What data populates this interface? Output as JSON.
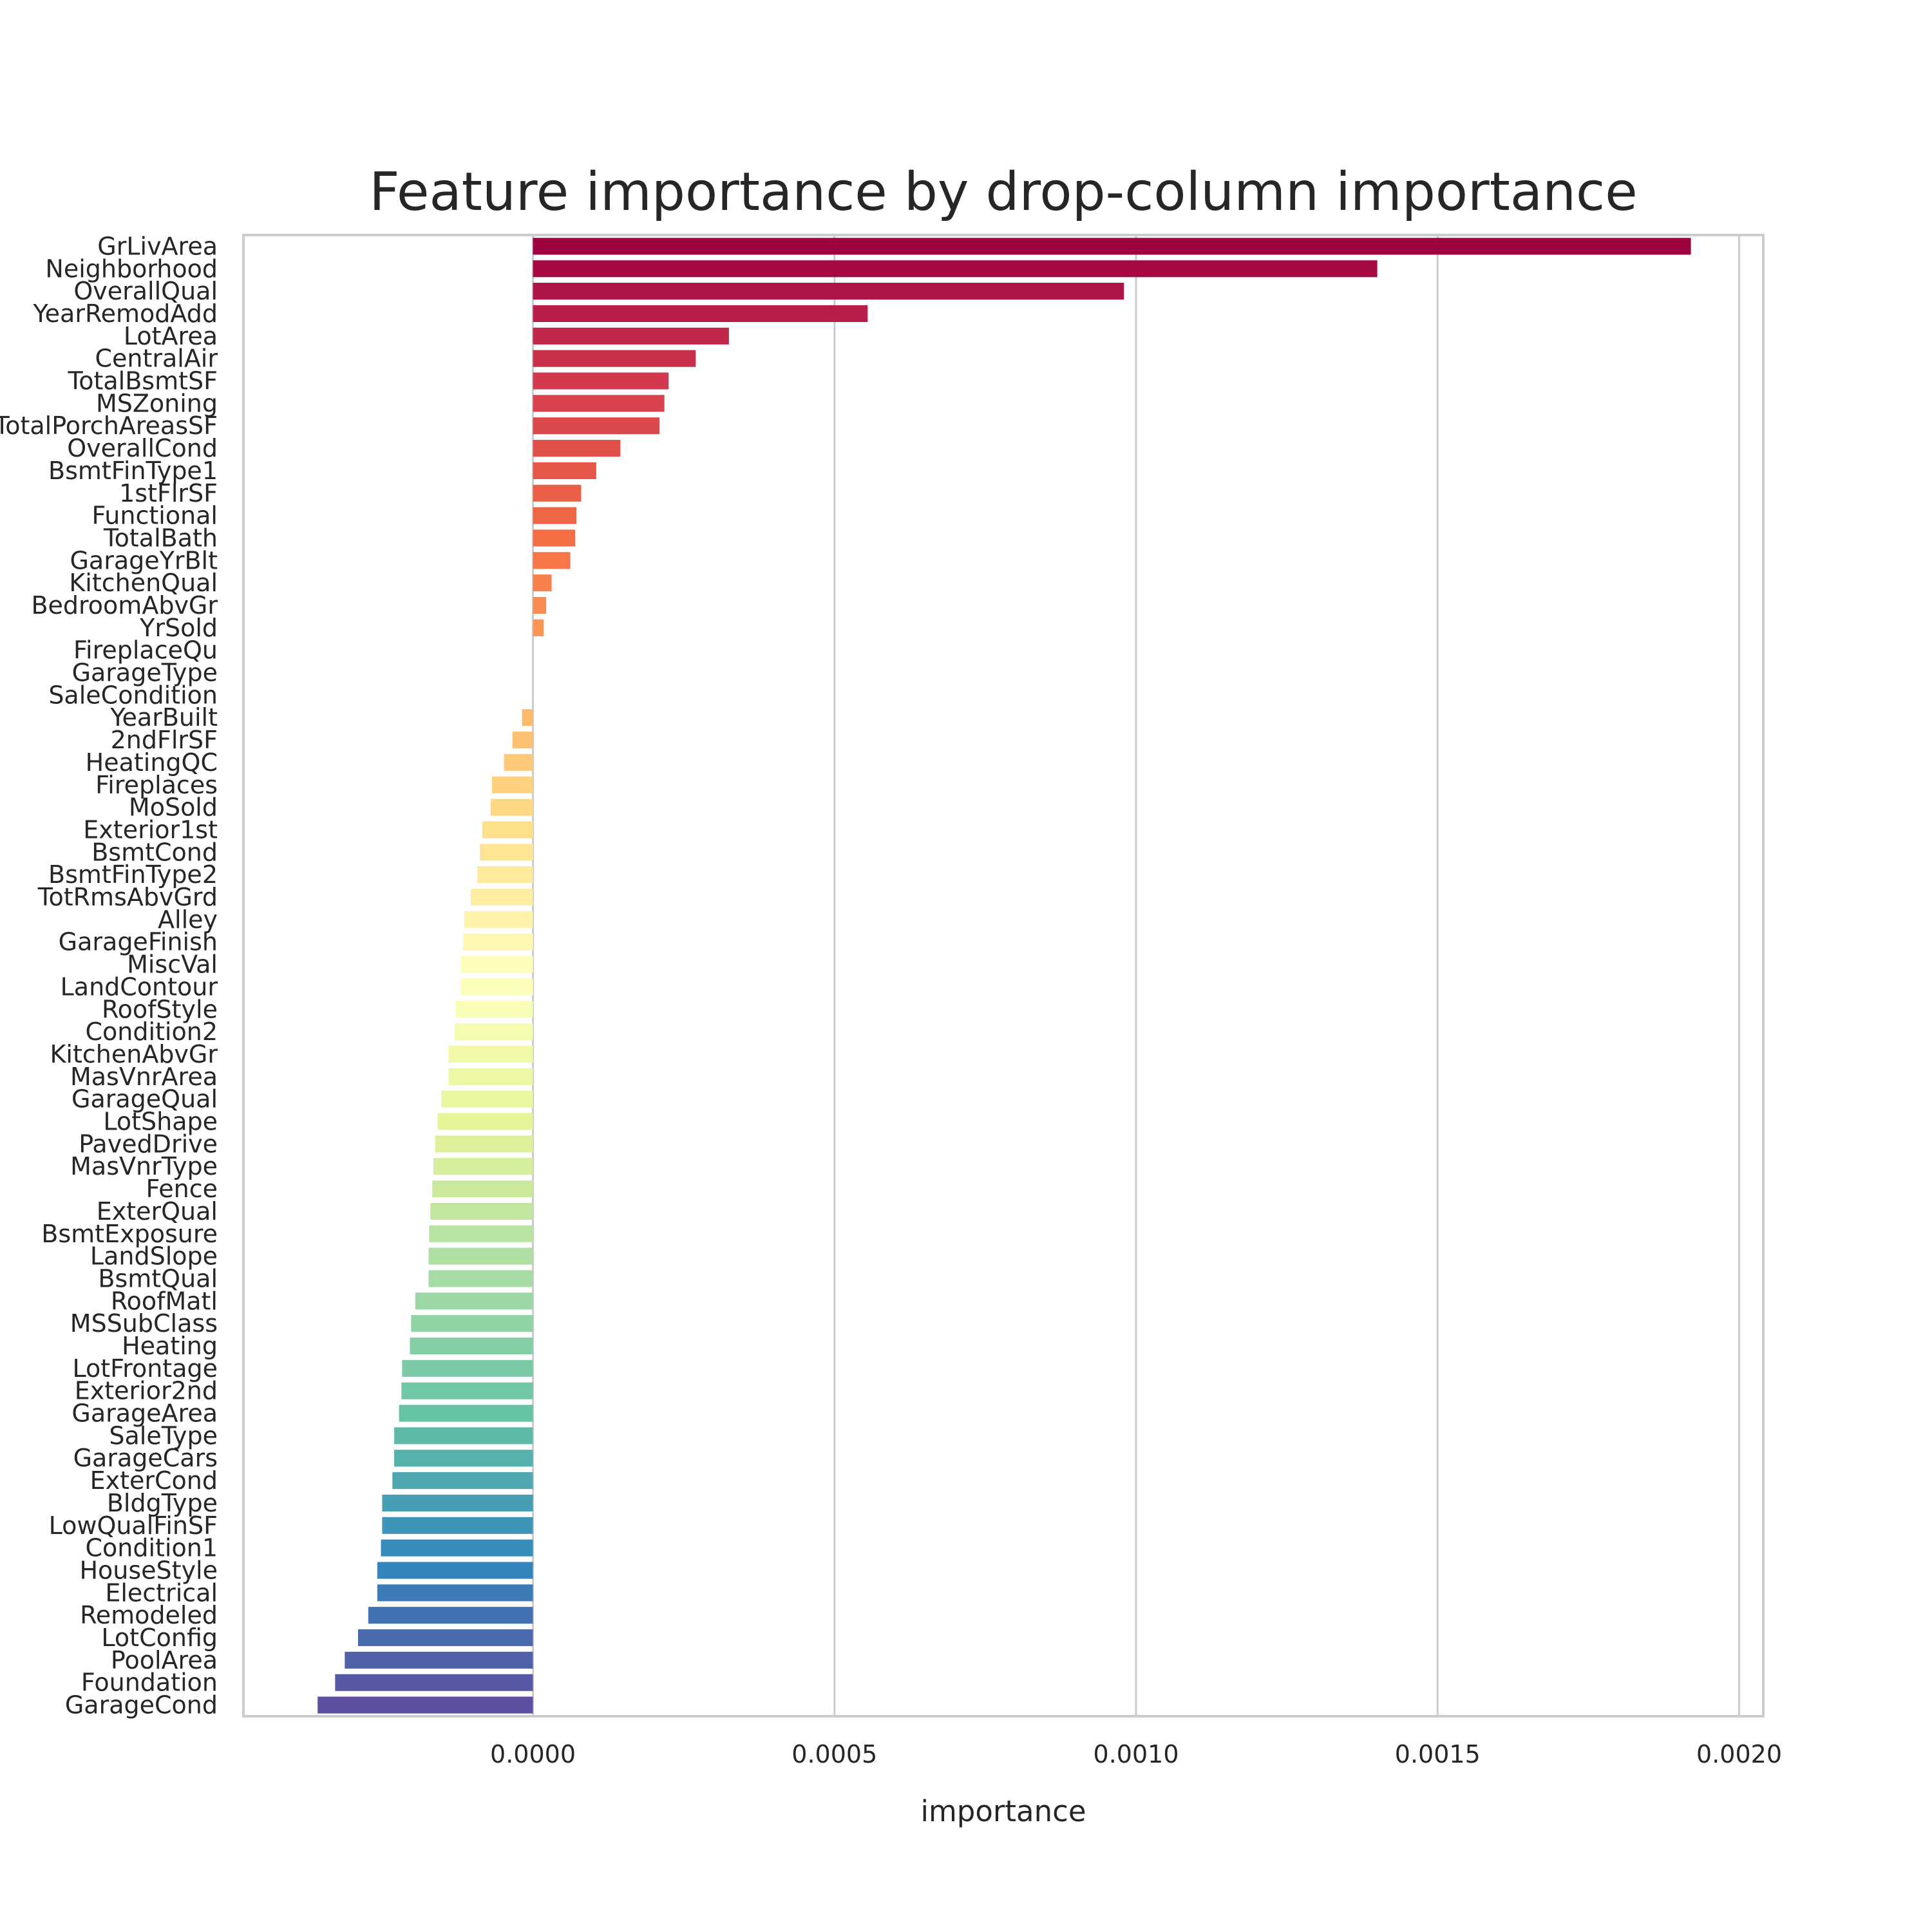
{
  "chart_data": {
    "type": "bar",
    "orientation": "horizontal",
    "title": "Feature importance by drop-column importance",
    "xlabel": "importance",
    "ylabel": "",
    "xlim": [
      -0.00048,
      0.00204
    ],
    "xticks": [
      0.0,
      0.0005,
      0.001,
      0.0015,
      0.002
    ],
    "xtick_labels": [
      "0.0000",
      "0.0005",
      "0.0010",
      "0.0015",
      "0.0020"
    ],
    "grid": "vertical",
    "palette": "Spectral",
    "categories": [
      "GrLivArea",
      "Neighborhood",
      "OverallQual",
      "YearRemodAdd",
      "LotArea",
      "CentralAir",
      "TotalBsmtSF",
      "MSZoning",
      "TotalPorchAreasSF",
      "OverallCond",
      "BsmtFinType1",
      "1stFlrSF",
      "Functional",
      "TotalBath",
      "GarageYrBlt",
      "KitchenQual",
      "BedroomAbvGr",
      "YrSold",
      "FireplaceQu",
      "GarageType",
      "SaleCondition",
      "YearBuilt",
      "2ndFlrSF",
      "HeatingQC",
      "Fireplaces",
      "MoSold",
      "Exterior1st",
      "BsmtCond",
      "BsmtFinType2",
      "TotRmsAbvGrd",
      "Alley",
      "GarageFinish",
      "MiscVal",
      "LandContour",
      "RoofStyle",
      "Condition2",
      "KitchenAbvGr",
      "MasVnrArea",
      "GarageQual",
      "LotShape",
      "PavedDrive",
      "MasVnrType",
      "Fence",
      "ExterQual",
      "BsmtExposure",
      "LandSlope",
      "BsmtQual",
      "RoofMatl",
      "MSSubClass",
      "Heating",
      "LotFrontage",
      "Exterior2nd",
      "GarageArea",
      "SaleType",
      "GarageCars",
      "ExterCond",
      "BldgType",
      "LowQualFinSF",
      "Condition1",
      "HouseStyle",
      "Electrical",
      "Remodeled",
      "LotConfig",
      "PoolArea",
      "Foundation",
      "GarageCond"
    ],
    "values": [
      0.00192,
      0.0014,
      0.00098,
      0.000555,
      0.000325,
      0.00027,
      0.000225,
      0.000218,
      0.00021,
      0.000145,
      0.000105,
      8e-05,
      7.2e-05,
      7e-05,
      6.2e-05,
      3.1e-05,
      2.2e-05,
      1.8e-05,
      0.0,
      0.0,
      0.0,
      -1.8e-05,
      -3.4e-05,
      -4.8e-05,
      -6.8e-05,
      -7e-05,
      -8.4e-05,
      -8.8e-05,
      -9.2e-05,
      -0.000103,
      -0.000114,
      -0.000116,
      -0.00012,
      -0.00012,
      -0.000128,
      -0.00013,
      -0.00014,
      -0.00014,
      -0.000152,
      -0.000158,
      -0.000162,
      -0.000165,
      -0.000167,
      -0.00017,
      -0.000172,
      -0.000173,
      -0.000173,
      -0.000195,
      -0.000202,
      -0.000204,
      -0.000217,
      -0.000218,
      -0.000222,
      -0.00023,
      -0.00023,
      -0.000233,
      -0.00025,
      -0.00025,
      -0.000252,
      -0.000258,
      -0.000258,
      -0.000273,
      -0.00029,
      -0.000312,
      -0.000328,
      -0.000357
    ]
  }
}
